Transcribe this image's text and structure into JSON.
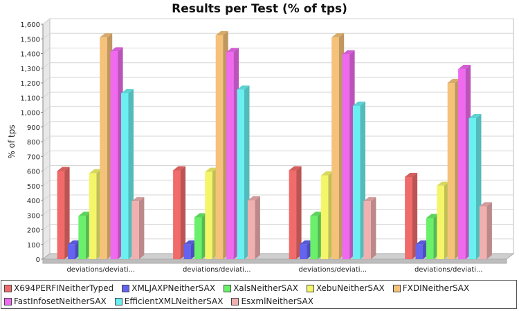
{
  "chart_data": {
    "type": "bar",
    "title": "Results per Test (% of tps)",
    "ylabel": "% of tps",
    "xlabel": "",
    "ylim": [
      0,
      1600
    ],
    "ytick_step": 100,
    "yticks": [
      "0",
      "100",
      "200",
      "300",
      "400",
      "500",
      "600",
      "700",
      "800",
      "900",
      "1,000",
      "1,100",
      "1,200",
      "1,300",
      "1,400",
      "1,500",
      "1,600"
    ],
    "grid": true,
    "legend_position": "bottom",
    "categories": [
      "deviations/deviati...",
      "deviations/deviati...",
      "deviations/deviati...",
      "deviations/deviati..."
    ],
    "series": [
      {
        "name": "X694PERFINeitherTyped",
        "color": "#f26b6b",
        "values": [
          600,
          605,
          605,
          560
        ]
      },
      {
        "name": "XMLJAXPNeitherSAX",
        "color": "#6464f0",
        "values": [
          100,
          100,
          100,
          100
        ]
      },
      {
        "name": "XalsNeitherSAX",
        "color": "#6af06a",
        "values": [
          295,
          285,
          295,
          280
        ]
      },
      {
        "name": "XebuNeitherSAX",
        "color": "#f5f56a",
        "values": [
          585,
          595,
          570,
          500
        ]
      },
      {
        "name": "FXDINeitherSAX",
        "color": "#f5c27a",
        "values": [
          1510,
          1525,
          1510,
          1200
        ]
      },
      {
        "name": "FastInfosetNeitherSAX",
        "color": "#f06af0",
        "values": [
          1415,
          1410,
          1395,
          1295
        ]
      },
      {
        "name": "EfficientXMLNeitherSAX",
        "color": "#6af0f0",
        "values": [
          1130,
          1155,
          1045,
          960
        ]
      },
      {
        "name": "EsxmlNeitherSAX",
        "color": "#f0b0b0",
        "values": [
          395,
          400,
          395,
          360
        ]
      }
    ]
  }
}
